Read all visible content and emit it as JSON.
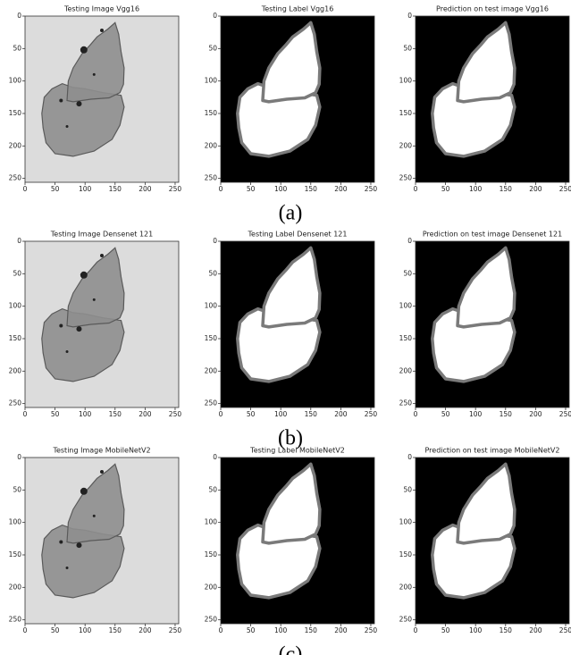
{
  "figure": {
    "xticks": [
      0,
      50,
      100,
      150,
      200,
      250
    ],
    "yticks": [
      0,
      50,
      100,
      150,
      200,
      250
    ],
    "xlim": [
      0,
      256
    ],
    "ylim": [
      0,
      256
    ],
    "rows": [
      {
        "titles": [
          "Testing Image Vgg16",
          "Testing Label Vgg16",
          "Prediction on test image Vgg16"
        ],
        "caption": "(a)"
      },
      {
        "titles": [
          "Testing Image Densenet 121",
          "Testing Label Densenet 121",
          "Prediction on test image Densenet 121"
        ],
        "caption": "(b)"
      },
      {
        "titles": [
          "Testing Image MobileNetV2",
          "Testing Label MobileNetV2",
          "Prediction on test image MobileNetV2"
        ],
        "caption": "(c)"
      }
    ]
  }
}
